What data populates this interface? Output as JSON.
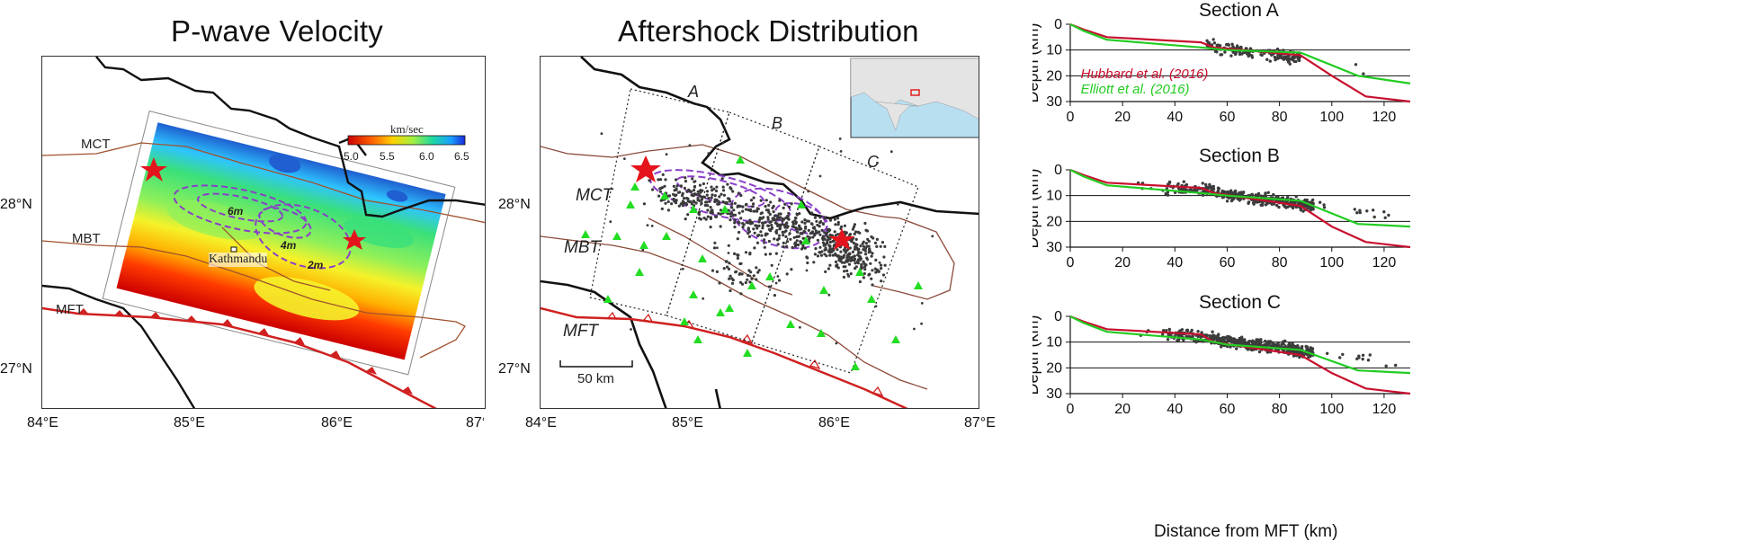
{
  "panels": {
    "p_wave": {
      "title": "P-wave Velocity",
      "colorbar": {
        "unit": "km/sec",
        "ticks": [
          "5.0",
          "5.5",
          "6.0",
          "6.5"
        ]
      },
      "contour_labels": [
        "6m",
        "4m",
        "2m"
      ],
      "city_label": "Kathmandu",
      "faults": [
        "MCT",
        "MBT",
        "MFT"
      ]
    },
    "aftershock": {
      "title": "Aftershock Distribution",
      "faults": [
        "MCT",
        "MBT",
        "MFT"
      ],
      "section_labels": [
        "A",
        "B",
        "C"
      ],
      "scale_bar": "50 km"
    },
    "map_axes": {
      "lat_labels": [
        "28°N",
        "27°N"
      ],
      "lon_labels": [
        "84°E",
        "85°E",
        "86°E",
        "87°E"
      ]
    }
  },
  "chart_data": [
    {
      "type": "line",
      "title": "Section A",
      "xlabel": "",
      "ylabel": "Depth (km)",
      "xlim": [
        0,
        130
      ],
      "ylim": [
        30,
        0
      ],
      "xticks": [
        "0",
        "20",
        "40",
        "60",
        "80",
        "100",
        "120"
      ],
      "yticks": [
        "0",
        "10",
        "20",
        "30"
      ],
      "legend": [
        "Hubbard et al. (2016)",
        "Elliott et al. (2016)"
      ],
      "series": [
        {
          "name": "Hubbard et al. (2016)",
          "color": "#c8102e",
          "x": [
            0,
            5,
            14,
            50,
            55,
            88,
            100,
            113,
            130
          ],
          "y": [
            0,
            2,
            5,
            7,
            9,
            12,
            20,
            28,
            30
          ]
        },
        {
          "name": "Elliott et al. (2016)",
          "color": "#22cc22",
          "x": [
            0,
            5,
            14,
            50,
            60,
            88,
            110,
            130
          ],
          "y": [
            0,
            2.5,
            6,
            9,
            10,
            11,
            20,
            23
          ]
        }
      ],
      "scatter_count_approx": 180
    },
    {
      "type": "line",
      "title": "Section B",
      "xlabel": "",
      "ylabel": "Depth (km)",
      "xlim": [
        0,
        130
      ],
      "ylim": [
        30,
        0
      ],
      "xticks": [
        "0",
        "20",
        "40",
        "60",
        "80",
        "100",
        "120"
      ],
      "yticks": [
        "0",
        "10",
        "20",
        "30"
      ],
      "series": [
        {
          "name": "Hubbard et al. (2016)",
          "color": "#c8102e",
          "x": [
            0,
            5,
            14,
            50,
            55,
            88,
            100,
            113,
            130
          ],
          "y": [
            0,
            2,
            5,
            7,
            9,
            14,
            22,
            28,
            30
          ]
        },
        {
          "name": "Elliott et al. (2016)",
          "color": "#22cc22",
          "x": [
            0,
            5,
            14,
            50,
            60,
            88,
            110,
            130
          ],
          "y": [
            0,
            2.5,
            6,
            9,
            10,
            12,
            21,
            22
          ]
        }
      ],
      "scatter_count_approx": 400
    },
    {
      "type": "line",
      "title": "Section C",
      "xlabel": "Distance from MFT (km)",
      "ylabel": "Depth (km)",
      "xlim": [
        0,
        130
      ],
      "ylim": [
        30,
        0
      ],
      "xticks": [
        "0",
        "20",
        "40",
        "60",
        "80",
        "100",
        "120"
      ],
      "yticks": [
        "0",
        "10",
        "20",
        "30"
      ],
      "series": [
        {
          "name": "Hubbard et al. (2016)",
          "color": "#c8102e",
          "x": [
            0,
            5,
            14,
            50,
            55,
            88,
            100,
            113,
            130
          ],
          "y": [
            0,
            2,
            5,
            7,
            10,
            15,
            22,
            28,
            30
          ]
        },
        {
          "name": "Elliott et al. (2016)",
          "color": "#22cc22",
          "x": [
            0,
            5,
            14,
            50,
            60,
            88,
            110,
            130
          ],
          "y": [
            0,
            2.5,
            6,
            9,
            11,
            13,
            21,
            22
          ]
        }
      ],
      "scatter_count_approx": 500
    }
  ]
}
